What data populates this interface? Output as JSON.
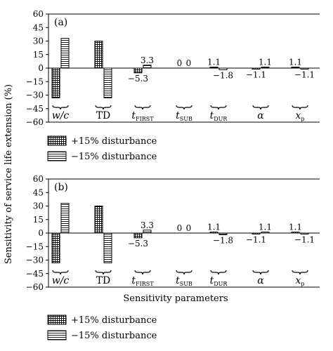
{
  "chart_data": {
    "type": "bar",
    "ylabel": "Sensitivity of service life extension (%)",
    "xlabel": "Sensitivity parameters",
    "ylim": [
      -60,
      60
    ],
    "yticks": [
      60,
      45,
      30,
      15,
      0,
      -15,
      -30,
      -45,
      -60
    ],
    "grid": false,
    "legend_placement": "bottom-left, below each panel",
    "categories": [
      {
        "main": "w/c",
        "sub": "",
        "italic": true
      },
      {
        "main": "TD",
        "sub": "",
        "italic": false
      },
      {
        "main": "t",
        "sub": "FIRST",
        "italic": true
      },
      {
        "main": "t",
        "sub": "SUB",
        "italic": true
      },
      {
        "main": "t",
        "sub": "DUR",
        "italic": true
      },
      {
        "main": "α",
        "sub": "",
        "italic": true
      },
      {
        "main": "x",
        "sub": "p",
        "italic": true
      }
    ],
    "panels": [
      {
        "tag": "(a)",
        "series": [
          {
            "name": "+15% disturbance",
            "pattern": "grid",
            "values": [
              -33,
              30,
              -5.3,
              0,
              1.1,
              -1.1,
              1.1
            ],
            "labels": [
              "",
              "",
              "−5.3",
              "0",
              "1.1",
              "−1.1",
              "1.1"
            ]
          },
          {
            "name": "−15% disturbance",
            "pattern": "hlines",
            "values": [
              33,
              -33,
              3.3,
              0,
              -1.8,
              1.1,
              -1.1
            ],
            "labels": [
              "",
              "",
              "3.3",
              "0",
              "−1.8",
              "1.1",
              "−1.1"
            ]
          }
        ]
      },
      {
        "tag": "(b)",
        "series": [
          {
            "name": "+15% disturbance",
            "pattern": "grid",
            "values": [
              -33,
              30,
              -5.3,
              0,
              1.1,
              -1.1,
              1.1
            ],
            "labels": [
              "",
              "",
              "−5.3",
              "0",
              "1.1",
              "−1.1",
              "1.1"
            ]
          },
          {
            "name": "−15% disturbance",
            "pattern": "hlines",
            "values": [
              33,
              -33,
              3.3,
              0,
              -1.8,
              1.1,
              -1.1
            ],
            "labels": [
              "",
              "",
              "3.3",
              "0",
              "−1.8",
              "1.1",
              "−1.1"
            ]
          }
        ]
      }
    ]
  }
}
